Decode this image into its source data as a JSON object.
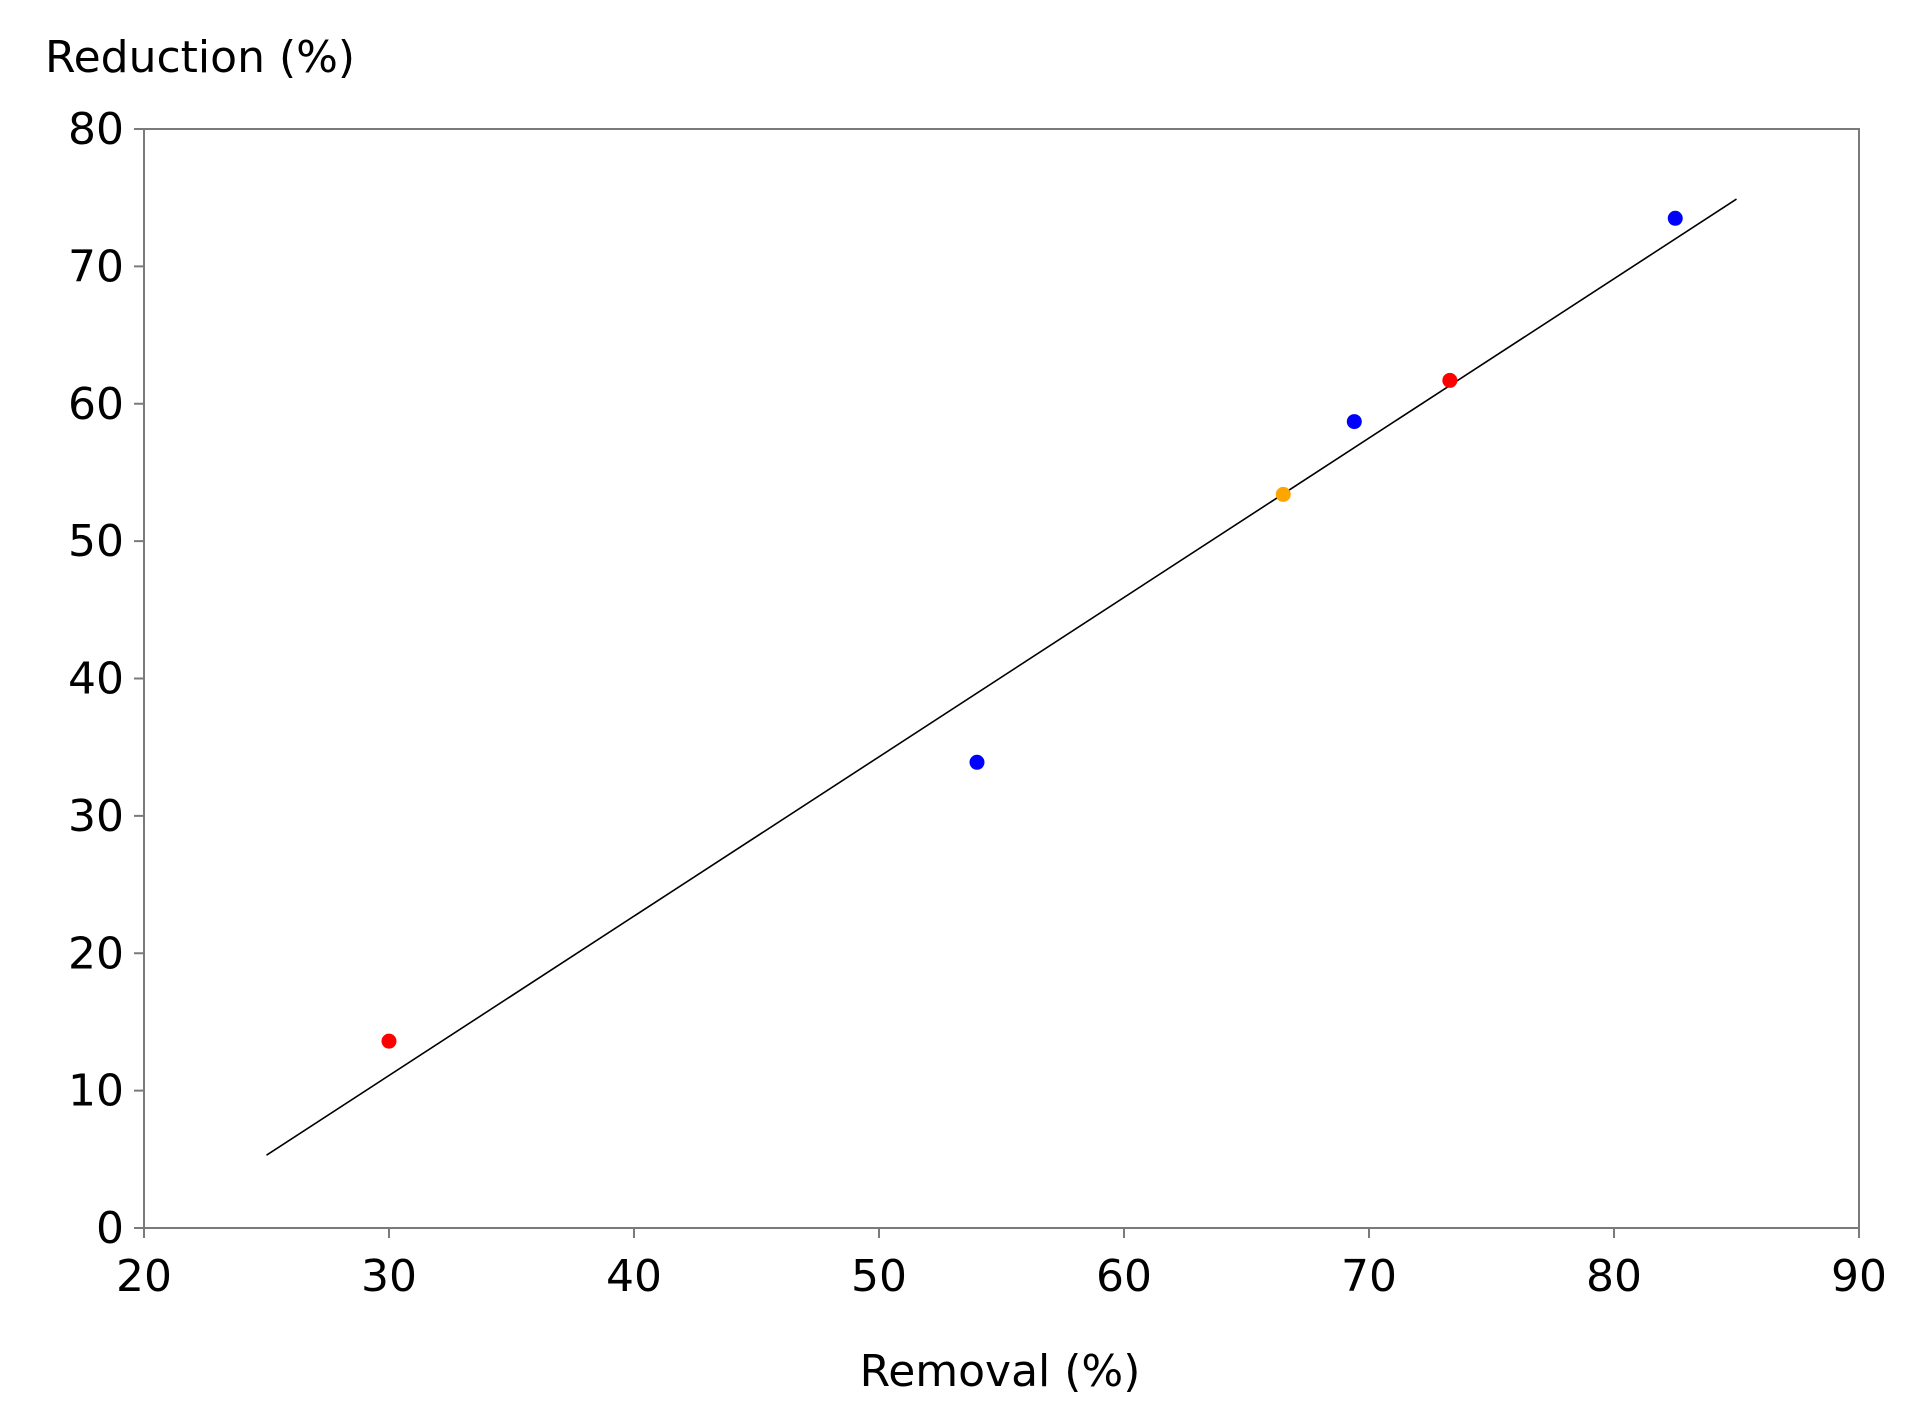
{
  "chart_data": {
    "type": "scatter",
    "title": "",
    "xlabel": "Removal (%)",
    "ylabel": "Reduction (%)",
    "xlim": [
      20,
      90
    ],
    "ylim": [
      0,
      80
    ],
    "xticks": [
      20,
      30,
      40,
      50,
      60,
      70,
      80,
      90
    ],
    "yticks": [
      0,
      10,
      20,
      30,
      40,
      50,
      60,
      70,
      80
    ],
    "grid": false,
    "legend": "none",
    "points": [
      {
        "x": 30.0,
        "y": 13.6,
        "color": "#ff0000"
      },
      {
        "x": 54.0,
        "y": 33.9,
        "color": "#0000ff"
      },
      {
        "x": 66.5,
        "y": 53.4,
        "color": "#ffa500"
      },
      {
        "x": 69.4,
        "y": 58.7,
        "color": "#0000ff"
      },
      {
        "x": 73.3,
        "y": 61.7,
        "color": "#ff0000"
      },
      {
        "x": 82.5,
        "y": 73.5,
        "color": "#0000ff"
      }
    ],
    "fit_line": {
      "x": [
        25,
        85
      ],
      "y": [
        5.3,
        74.9
      ],
      "color": "#000000"
    }
  }
}
